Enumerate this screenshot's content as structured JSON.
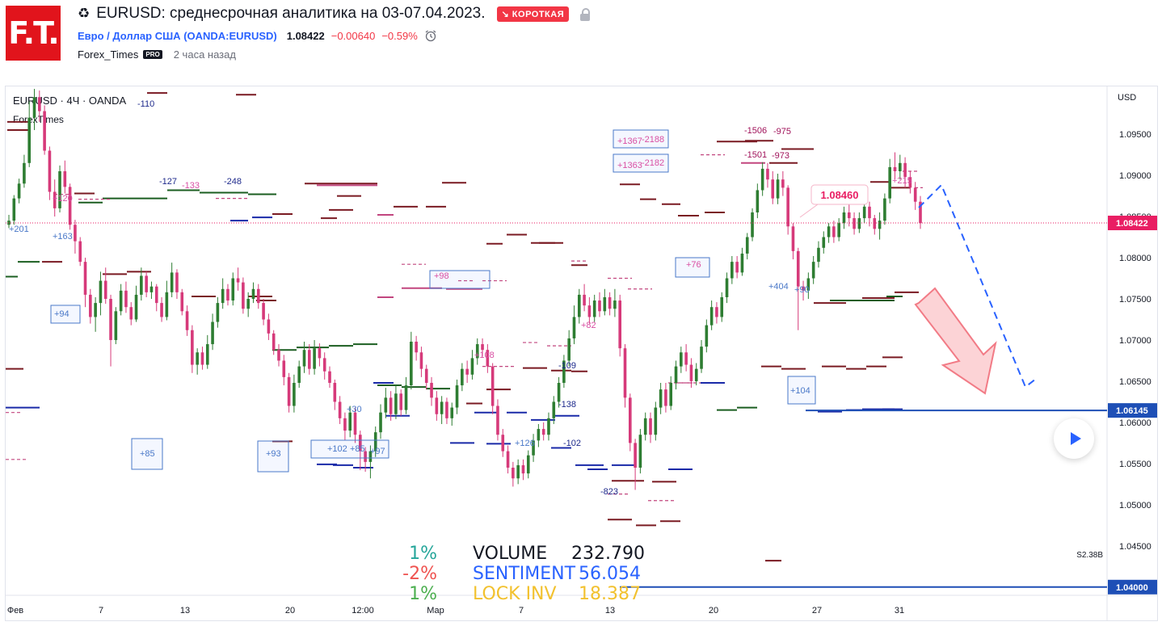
{
  "header": {
    "title": "EURUSD: среднесрочная аналитика на 03-07.04.2023.",
    "badge": "↘ КОРОТКАЯ",
    "symbol_name": "Евро / Доллар США",
    "symbol_code": "(OANDA:EURUSD)",
    "price": "1.08422",
    "change": "−0.00640",
    "change_pct": "−0.59%",
    "author": "Forex_Times",
    "pro": "PRO",
    "time_ago": "2 часа назад",
    "logo": "F.T."
  },
  "chart_legend": {
    "line1": "EURUSD · 4Ч · OANDA",
    "line2": "ForexTimes",
    "currency": "USD"
  },
  "stats": [
    {
      "pct": "1%",
      "pct_color": "#26a69a",
      "label": "VOLUME",
      "label_color": "#131722",
      "value": "232.790",
      "value_color": "#131722"
    },
    {
      "pct": "-2%",
      "pct_color": "#ef5350",
      "label": "SENTIMENT",
      "label_color": "#2962ff",
      "value": "56.054",
      "value_color": "#2962ff"
    },
    {
      "pct": "1%",
      "pct_color": "#4caf50",
      "label": "LOCK INV",
      "label_color": "#f2c12e",
      "value": "18.387",
      "value_color": "#f2c12e"
    }
  ],
  "chart_data": {
    "type": "candlestick",
    "y_range": [
      1.039,
      1.1008
    ],
    "y_ticks": [
      "1.09500",
      "1.09000",
      "1.08500",
      "1.08000",
      "1.07500",
      "1.07000",
      "1.06500",
      "1.06000",
      "1.05500",
      "1.05000",
      "1.04500",
      "1.04000"
    ],
    "x_ticks": [
      "Фев",
      "7",
      "13",
      "20",
      "12:00",
      "Мар",
      "7",
      "13",
      "20",
      "27",
      "31"
    ],
    "price_labels": [
      {
        "text": "1.08422",
        "color": "#e91e63",
        "value": 1.08422
      },
      {
        "text": "1.06145",
        "color": "#1e4fb6",
        "value": 1.06145
      },
      {
        "text": "1.04000",
        "color": "#1e4fb6",
        "value": 1.04
      }
    ],
    "callout": {
      "text": "1.08460",
      "value": 1.0846
    },
    "line_label": "S2.38B",
    "annotations": [
      {
        "text": "-110",
        "color": "#1e2a8c"
      },
      {
        "text": "-127",
        "color": "#1e2a8c"
      },
      {
        "text": "-133",
        "color": "#d94fa3"
      },
      {
        "text": "-248",
        "color": "#1e2a8c"
      },
      {
        "text": "+201",
        "color": "#4a78c8"
      },
      {
        "text": "+163",
        "color": "#4a78c8"
      },
      {
        "text": "+120",
        "color": "#d94fa3"
      },
      {
        "text": "+94",
        "color": "#4a78c8"
      },
      {
        "text": "+85",
        "color": "#4a78c8"
      },
      {
        "text": "+93",
        "color": "#4a78c8"
      },
      {
        "text": "+102",
        "color": "#4a78c8"
      },
      {
        "text": "+85",
        "color": "#4a78c8"
      },
      {
        "text": "+97",
        "color": "#4a78c8"
      },
      {
        "text": "+98",
        "color": "#d94fa3"
      },
      {
        "text": "+108",
        "color": "#d94fa3"
      },
      {
        "text": "-109",
        "color": "#1e2a8c"
      },
      {
        "text": "-138",
        "color": "#1e2a8c"
      },
      {
        "text": "+126",
        "color": "#4a78c8"
      },
      {
        "text": "-102",
        "color": "#1e2a8c"
      },
      {
        "text": "-823",
        "color": "#1e2a8c"
      },
      {
        "text": "+82",
        "color": "#d94fa3"
      },
      {
        "text": "+1367",
        "color": "#d94fa3"
      },
      {
        "text": "-2188",
        "color": "#d94fa3"
      },
      {
        "text": "+1363",
        "color": "#d94fa3"
      },
      {
        "text": "-2182",
        "color": "#d94fa3"
      },
      {
        "text": "+76",
        "color": "#d94fa3"
      },
      {
        "text": "-1506",
        "color": "#a0125a"
      },
      {
        "text": "-975",
        "color": "#a0125a"
      },
      {
        "text": "-1501",
        "color": "#a0125a"
      },
      {
        "text": "-973",
        "color": "#a0125a"
      },
      {
        "text": "+404",
        "color": "#4a78c8"
      },
      {
        "text": "+90",
        "color": "#4a78c8"
      },
      {
        "text": "+104",
        "color": "#4a78c8"
      },
      {
        "text": "+215",
        "color": "#d94fa3"
      },
      {
        "text": "+30",
        "color": "#4a78c8"
      }
    ],
    "candles": [
      [
        1.084,
        1.0845,
        1.0836,
        1.0852
      ],
      [
        1.0845,
        1.0872,
        1.084,
        1.0876
      ],
      [
        1.0872,
        1.089,
        1.0866,
        1.0896
      ],
      [
        1.089,
        1.0915,
        1.0885,
        1.0925
      ],
      [
        1.0915,
        1.097,
        1.091,
        1.099
      ],
      [
        1.097,
        1.0995,
        1.0955,
        1.1005
      ],
      [
        1.0995,
        1.0978,
        1.0965,
        1.1003
      ],
      [
        1.0978,
        1.093,
        1.0925,
        1.0985
      ],
      [
        1.093,
        1.088,
        1.087,
        1.0935
      ],
      [
        1.088,
        1.086,
        1.085,
        1.0895
      ],
      [
        1.086,
        1.0905,
        1.0855,
        1.0912
      ],
      [
        1.0905,
        1.0886,
        1.0878,
        1.0918
      ],
      [
        1.0886,
        1.084,
        1.0834,
        1.089
      ],
      [
        1.084,
        1.082,
        1.0805,
        1.0846
      ],
      [
        1.082,
        1.0795,
        1.079,
        1.0825
      ],
      [
        1.0795,
        1.0755,
        1.074,
        1.08
      ],
      [
        1.0755,
        1.0728,
        1.072,
        1.0762
      ],
      [
        1.0728,
        1.0745,
        1.071,
        1.0752
      ],
      [
        1.0745,
        1.0772,
        1.073,
        1.0783
      ],
      [
        1.0772,
        1.075,
        1.0744,
        1.0788
      ],
      [
        1.075,
        1.07,
        1.0668,
        1.0755
      ],
      [
        1.07,
        1.0735,
        1.0695,
        1.074
      ],
      [
        1.0735,
        1.076,
        1.073,
        1.0768
      ],
      [
        1.076,
        1.074,
        1.0733,
        1.0771
      ],
      [
        1.074,
        1.0725,
        1.0718,
        1.0746
      ],
      [
        1.0725,
        1.0755,
        1.0722,
        1.0766
      ],
      [
        1.0755,
        1.0778,
        1.0748,
        1.0788
      ],
      [
        1.0778,
        1.0758,
        1.0752,
        1.0783
      ],
      [
        1.0758,
        1.0765,
        1.075,
        1.0771
      ],
      [
        1.0765,
        1.0745,
        1.0735,
        1.0768
      ],
      [
        1.0745,
        1.0728,
        1.0722,
        1.0752
      ],
      [
        1.0728,
        1.0758,
        1.0724,
        1.0772
      ],
      [
        1.0758,
        1.0782,
        1.0752,
        1.0794
      ],
      [
        1.0782,
        1.0758,
        1.075,
        1.0786
      ],
      [
        1.0758,
        1.0735,
        1.073,
        1.0762
      ],
      [
        1.0735,
        1.0712,
        1.0705,
        1.0742
      ],
      [
        1.0712,
        1.067,
        1.066,
        1.0718
      ],
      [
        1.067,
        1.0685,
        1.0658,
        1.069
      ],
      [
        1.0685,
        1.067,
        1.0664,
        1.0692
      ],
      [
        1.067,
        1.0695,
        1.0665,
        1.0706
      ],
      [
        1.0695,
        1.0722,
        1.0688,
        1.0732
      ],
      [
        1.0722,
        1.0745,
        1.0715,
        1.0752
      ],
      [
        1.0745,
        1.0762,
        1.0738,
        1.0775
      ],
      [
        1.0762,
        1.0748,
        1.0742,
        1.0768
      ],
      [
        1.0748,
        1.0775,
        1.0742,
        1.0782
      ],
      [
        1.0775,
        1.077,
        1.076,
        1.0788
      ],
      [
        1.077,
        1.0738,
        1.0732,
        1.0776
      ],
      [
        1.0738,
        1.075,
        1.0728,
        1.0758
      ],
      [
        1.075,
        1.0762,
        1.0745,
        1.077
      ],
      [
        1.0762,
        1.0745,
        1.0738,
        1.0768
      ],
      [
        1.0745,
        1.0725,
        1.0718,
        1.075
      ],
      [
        1.0725,
        1.0708,
        1.07,
        1.0732
      ],
      [
        1.0708,
        1.0688,
        1.0682,
        1.0712
      ],
      [
        1.0688,
        1.0675,
        1.0668,
        1.0695
      ],
      [
        1.0675,
        1.0655,
        1.0645,
        1.0682
      ],
      [
        1.0655,
        1.062,
        1.0612,
        1.066
      ],
      [
        1.062,
        1.0648,
        1.0612,
        1.0658
      ],
      [
        1.0648,
        1.0668,
        1.0642,
        1.0675
      ],
      [
        1.0668,
        1.0688,
        1.066,
        1.0698
      ],
      [
        1.0688,
        1.0665,
        1.0658,
        1.0695
      ],
      [
        1.0665,
        1.069,
        1.0658,
        1.07
      ],
      [
        1.069,
        1.0678,
        1.0668,
        1.0696
      ],
      [
        1.0678,
        1.0662,
        1.0652,
        1.0685
      ],
      [
        1.0662,
        1.0648,
        1.0642,
        1.0668
      ],
      [
        1.0648,
        1.0625,
        1.0615,
        1.0652
      ],
      [
        1.0625,
        1.0605,
        1.0598,
        1.0632
      ],
      [
        1.0605,
        1.059,
        1.0578,
        1.0612
      ],
      [
        1.059,
        1.0612,
        1.0582,
        1.062
      ],
      [
        1.0612,
        1.0585,
        1.0575,
        1.0618
      ],
      [
        1.0585,
        1.0565,
        1.0542,
        1.059
      ],
      [
        1.0565,
        1.0552,
        1.054,
        1.057
      ],
      [
        1.0552,
        1.0565,
        1.0532,
        1.0572
      ],
      [
        1.0565,
        1.0588,
        1.0558,
        1.0595
      ],
      [
        1.0588,
        1.0612,
        1.058,
        1.0622
      ],
      [
        1.0612,
        1.063,
        1.0605,
        1.0642
      ],
      [
        1.063,
        1.061,
        1.0602,
        1.0638
      ],
      [
        1.061,
        1.0635,
        1.0604,
        1.0645
      ],
      [
        1.0635,
        1.0615,
        1.0608,
        1.064
      ],
      [
        1.0615,
        1.0645,
        1.061,
        1.0655
      ],
      [
        1.0645,
        1.0698,
        1.064,
        1.071
      ],
      [
        1.0698,
        1.0685,
        1.0675,
        1.0705
      ],
      [
        1.0685,
        1.0665,
        1.0655,
        1.0692
      ],
      [
        1.0665,
        1.0648,
        1.064,
        1.067
      ],
      [
        1.0648,
        1.063,
        1.062,
        1.0655
      ],
      [
        1.063,
        1.061,
        1.0602,
        1.0638
      ],
      [
        1.061,
        1.0625,
        1.0598,
        1.0632
      ],
      [
        1.0625,
        1.0605,
        1.0598,
        1.063
      ],
      [
        1.0605,
        1.0618,
        1.0596,
        1.0624
      ],
      [
        1.0618,
        1.0645,
        1.061,
        1.0652
      ],
      [
        1.0645,
        1.0665,
        1.0638,
        1.0672
      ],
      [
        1.0665,
        1.0658,
        1.0648,
        1.0675
      ],
      [
        1.0658,
        1.0678,
        1.0652,
        1.0688
      ],
      [
        1.0678,
        1.0695,
        1.067,
        1.0702
      ],
      [
        1.0695,
        1.0688,
        1.068,
        1.0702
      ],
      [
        1.0688,
        1.0668,
        1.066,
        1.0695
      ],
      [
        1.0668,
        1.062,
        1.061,
        1.0672
      ],
      [
        1.062,
        1.0585,
        1.0578,
        1.0628
      ],
      [
        1.0585,
        1.0565,
        1.0558,
        1.0592
      ],
      [
        1.0565,
        1.0545,
        1.0538,
        1.0572
      ],
      [
        1.0545,
        1.0532,
        1.0522,
        1.0552
      ],
      [
        1.0532,
        1.0548,
        1.0525,
        1.0555
      ],
      [
        1.0548,
        1.0538,
        1.053,
        1.0555
      ],
      [
        1.0538,
        1.056,
        1.0532,
        1.0566
      ],
      [
        1.056,
        1.0578,
        1.0552,
        1.0586
      ],
      [
        1.0578,
        1.0592,
        1.057,
        1.0598
      ],
      [
        1.0592,
        1.0585,
        1.0578,
        1.06
      ],
      [
        1.0585,
        1.0605,
        1.0578,
        1.0612
      ],
      [
        1.0605,
        1.0625,
        1.0598,
        1.0632
      ],
      [
        1.0625,
        1.0648,
        1.0618,
        1.0655
      ],
      [
        1.0648,
        1.0675,
        1.0642,
        1.0682
      ],
      [
        1.0675,
        1.0702,
        1.0668,
        1.0712
      ],
      [
        1.0702,
        1.0728,
        1.0695,
        1.0742
      ],
      [
        1.0728,
        1.0755,
        1.072,
        1.0762
      ],
      [
        1.0755,
        1.0742,
        1.0735,
        1.0768
      ],
      [
        1.0742,
        1.0728,
        1.072,
        1.0752
      ],
      [
        1.0728,
        1.0748,
        1.0722,
        1.0755
      ],
      [
        1.0748,
        1.0735,
        1.0728,
        1.0758
      ],
      [
        1.0735,
        1.0752,
        1.073,
        1.0762
      ],
      [
        1.0752,
        1.0738,
        1.073,
        1.0758
      ],
      [
        1.0738,
        1.0748,
        1.0728,
        1.0762
      ],
      [
        1.0748,
        1.069,
        1.068,
        1.0755
      ],
      [
        1.069,
        1.063,
        1.0618,
        1.0695
      ],
      [
        1.063,
        1.0575,
        1.0565,
        1.0635
      ],
      [
        1.0575,
        1.0545,
        1.0518,
        1.058
      ],
      [
        1.0545,
        1.0585,
        1.0538,
        1.0592
      ],
      [
        1.0585,
        1.0605,
        1.0578,
        1.0612
      ],
      [
        1.0605,
        1.0585,
        1.0575,
        1.0612
      ],
      [
        1.0585,
        1.0618,
        1.0578,
        1.0625
      ],
      [
        1.0618,
        1.064,
        1.061,
        1.0648
      ],
      [
        1.064,
        1.062,
        1.0612,
        1.0648
      ],
      [
        1.062,
        1.0648,
        1.0615,
        1.0656
      ],
      [
        1.0648,
        1.0668,
        1.064,
        1.0675
      ],
      [
        1.0668,
        1.0685,
        1.066,
        1.0692
      ],
      [
        1.0685,
        1.067,
        1.0662,
        1.0695
      ],
      [
        1.067,
        1.065,
        1.0642,
        1.0678
      ],
      [
        1.065,
        1.0665,
        1.0645,
        1.0672
      ],
      [
        1.0665,
        1.0692,
        1.066,
        1.07
      ],
      [
        1.0692,
        1.0718,
        1.0685,
        1.0725
      ],
      [
        1.0718,
        1.074,
        1.0712,
        1.0748
      ],
      [
        1.074,
        1.0728,
        1.072,
        1.0746
      ],
      [
        1.0728,
        1.0752,
        1.0722,
        1.0758
      ],
      [
        1.0752,
        1.0775,
        1.0745,
        1.0782
      ],
      [
        1.0775,
        1.0795,
        1.0768,
        1.0802
      ],
      [
        1.0795,
        1.0782,
        1.0775,
        1.0802
      ],
      [
        1.0782,
        1.0805,
        1.0778,
        1.0812
      ],
      [
        1.0805,
        1.0825,
        1.0798,
        1.083
      ],
      [
        1.0825,
        1.0855,
        1.082,
        1.086
      ],
      [
        1.0855,
        1.0882,
        1.0848,
        1.089
      ],
      [
        1.0882,
        1.0908,
        1.0875,
        1.0916
      ],
      [
        1.0908,
        1.0895,
        1.0885,
        1.0915
      ],
      [
        1.0895,
        1.0872,
        1.0865,
        1.0905
      ],
      [
        1.0872,
        1.0895,
        1.0865,
        1.0902
      ],
      [
        1.0895,
        1.0885,
        1.0875,
        1.0905
      ],
      [
        1.0885,
        1.0838,
        1.0828,
        1.0888
      ],
      [
        1.0838,
        1.0808,
        1.0798,
        1.0842
      ],
      [
        1.0808,
        1.0765,
        1.0712,
        1.0812
      ],
      [
        1.0765,
        1.076,
        1.0748,
        1.0772
      ],
      [
        1.076,
        1.0775,
        1.075,
        1.0782
      ],
      [
        1.0775,
        1.0795,
        1.0768,
        1.0802
      ],
      [
        1.0795,
        1.0812,
        1.0788,
        1.082
      ],
      [
        1.0812,
        1.0825,
        1.0805,
        1.0832
      ],
      [
        1.0825,
        1.0838,
        1.0818,
        1.0842
      ],
      [
        1.0838,
        1.0825,
        1.0818,
        1.0845
      ],
      [
        1.0825,
        1.0842,
        1.082,
        1.0848
      ],
      [
        1.0842,
        1.0855,
        1.0835,
        1.0862
      ],
      [
        1.0855,
        1.0848,
        1.0838,
        1.0865
      ],
      [
        1.0848,
        1.0835,
        1.0828,
        1.0855
      ],
      [
        1.0835,
        1.0848,
        1.083,
        1.0855
      ],
      [
        1.0848,
        1.0862,
        1.0842,
        1.0868
      ],
      [
        1.0862,
        1.0848,
        1.0838,
        1.0868
      ],
      [
        1.0848,
        1.0835,
        1.0828,
        1.0852
      ],
      [
        1.0835,
        1.0845,
        1.0822,
        1.0855
      ],
      [
        1.0845,
        1.0872,
        1.084,
        1.0878
      ],
      [
        1.0872,
        1.091,
        1.0866,
        1.092
      ],
      [
        1.091,
        1.0905,
        1.0895,
        1.0928
      ],
      [
        1.0905,
        1.0915,
        1.0895,
        1.0925
      ],
      [
        1.0915,
        1.0898,
        1.0885,
        1.0922
      ],
      [
        1.0898,
        1.0885,
        1.0878,
        1.0905
      ],
      [
        1.0885,
        1.0868,
        1.0858,
        1.0892
      ],
      [
        1.0868,
        1.0842,
        1.0835,
        1.0875
      ]
    ]
  }
}
